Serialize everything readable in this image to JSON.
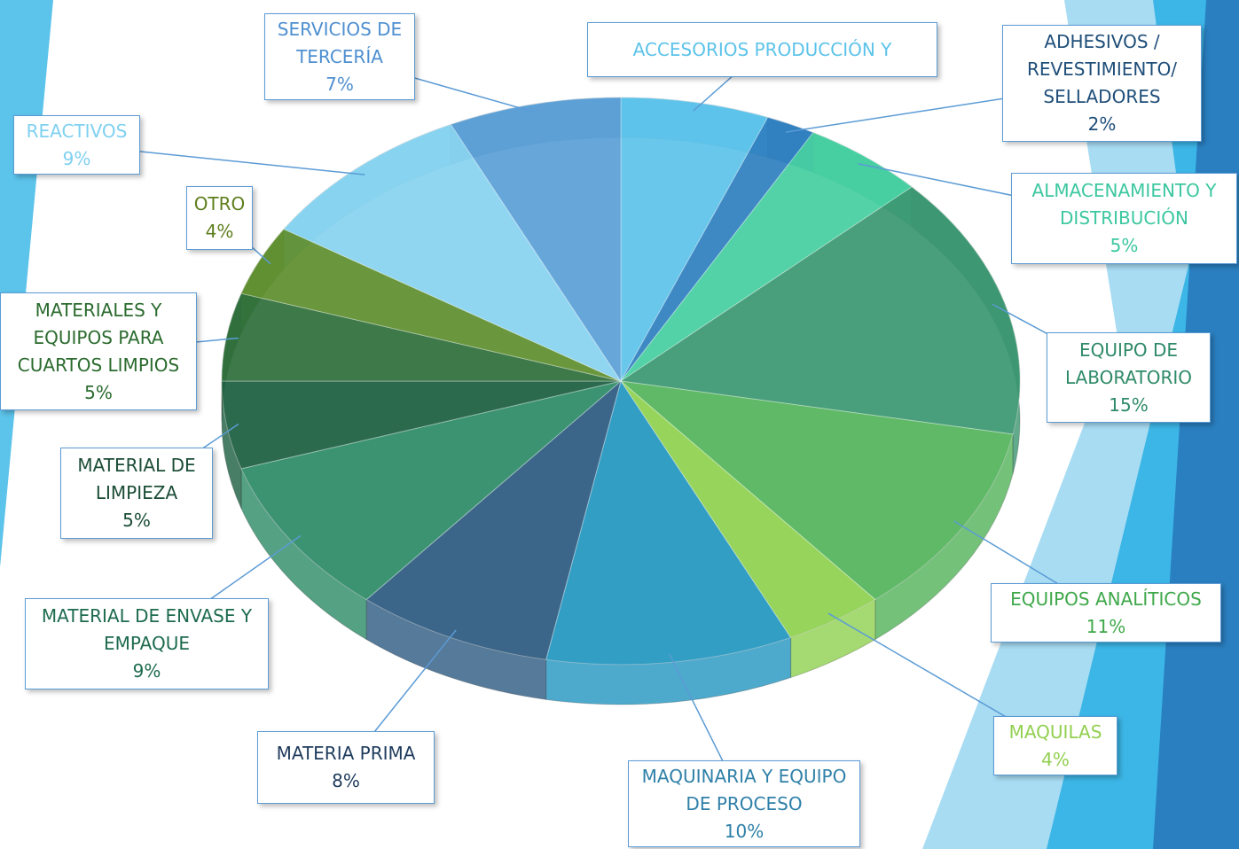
{
  "chart_data": {
    "type": "pie",
    "categories": [
      "ACCESORIOS PRODUCCIÓN Y",
      "ADHESIVOS / REVESTIMIENTO/ SELLADORES",
      "ALMACENAMIENTO Y DISTRIBUCIÓN",
      "EQUIPO DE LABORATORIO",
      "EQUIPOS ANALÍTICOS",
      "MAQUILAS",
      "MAQUINARIA Y EQUIPO DE PROCESO",
      "MATERIA PRIMA",
      "MATERIAL DE ENVASE Y EMPAQUE",
      "MATERIAL DE LIMPIEZA",
      "MATERIALES Y EQUIPOS PARA CUARTOS LIMPIOS",
      "OTRO",
      "REACTIVOS",
      "SERVICIOS DE TERCERÍA"
    ],
    "values": [
      6,
      2,
      5,
      15,
      11,
      4,
      10,
      8,
      9,
      5,
      5,
      4,
      9,
      7
    ],
    "value_labels": [
      null,
      "2%",
      "5%",
      "15%",
      "11%",
      "4%",
      "10%",
      "8%",
      "9%",
      "5%",
      "5%",
      "4%",
      "9%",
      "7%"
    ],
    "colors": [
      "#5cc3ea",
      "#2e7fc0",
      "#45cfa0",
      "#3a9670",
      "#52b45a",
      "#8fd14f",
      "#2296c0",
      "#2c5a80",
      "#2b8a66",
      "#1b5e40",
      "#2e6e3a",
      "#5e8f2e",
      "#87d3f0",
      "#5b9fd6"
    ],
    "label_colors": [
      "#5cc3ea",
      "#1f4e79",
      "#3cc7a0",
      "#2e8a68",
      "#3fa84a",
      "#92d050",
      "#2f80a8",
      "#1f3b5c",
      "#1d6b4e",
      "#1b4d36",
      "#2b6b2e",
      "#5e7f1e",
      "#7fd0f0",
      "#4e8fd0"
    ]
  }
}
